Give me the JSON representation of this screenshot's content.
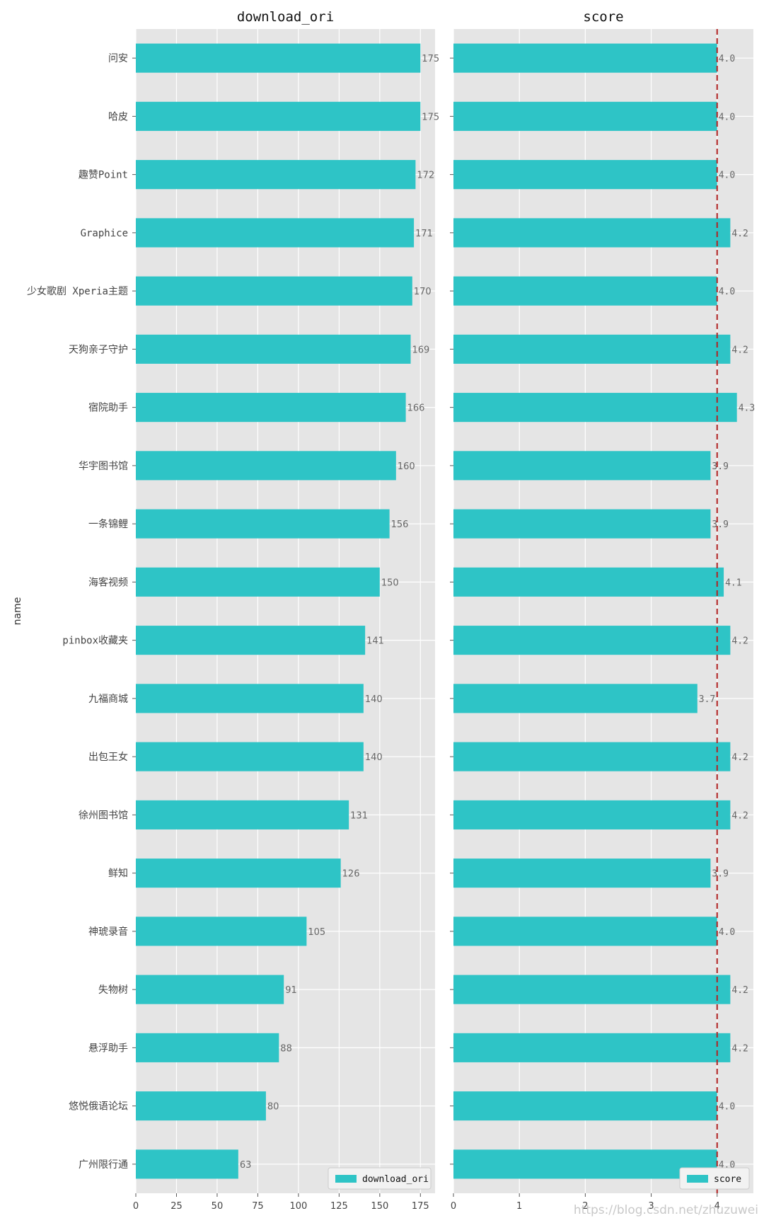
{
  "chart_data": [
    {
      "type": "bar",
      "orientation": "horizontal",
      "title": "download_ori",
      "ylabel": "name",
      "categories": [
        "问安",
        "哈皮",
        "趣赞Point",
        "Graphice",
        "少女歌剧 Xperia主题",
        "天狗亲子守护",
        "宿院助手",
        "华宇图书馆",
        "一条锦鲤",
        "海客视频",
        "pinbox收藏夹",
        "九福商城",
        "出包王女",
        "徐州图书馆",
        "鲜知",
        "神琥录音",
        "失物树",
        "悬浮助手",
        "悠悦俄语论坛",
        "广州限行通"
      ],
      "values": [
        175,
        175,
        172,
        171,
        170,
        169,
        166,
        160,
        156,
        150,
        141,
        140,
        140,
        131,
        126,
        105,
        91,
        88,
        80,
        63
      ],
      "data_labels": [
        "175",
        "175",
        "172",
        "171",
        "170",
        "169",
        "166",
        "160",
        "156",
        "150",
        "141",
        "140",
        "140",
        "131",
        "126",
        "105",
        "91",
        "88",
        "80",
        "63"
      ],
      "xlim": [
        0,
        184
      ],
      "xticks": [
        0,
        25,
        50,
        75,
        100,
        125,
        150,
        175
      ],
      "xtick_labels": [
        "0",
        "25",
        "50",
        "75",
        "100",
        "125",
        "150",
        "175"
      ],
      "legend": [
        "download_ori"
      ],
      "legend_position": "lower-right",
      "grid": true,
      "bar_color": "#2ec4c6"
    },
    {
      "type": "bar",
      "orientation": "horizontal",
      "title": "score",
      "values": [
        4.0,
        4.0,
        4.0,
        4.2,
        4.0,
        4.2,
        4.3,
        3.9,
        3.9,
        4.1,
        4.2,
        3.7,
        4.2,
        4.2,
        3.9,
        4.0,
        4.2,
        4.2,
        4.0,
        4.0
      ],
      "data_labels": [
        "4.0",
        "4.0",
        "4.0",
        "4.2",
        "4.0",
        "4.2",
        "4.3",
        "3.9",
        "3.9",
        "4.1",
        "4.2",
        "3.7",
        "4.2",
        "4.2",
        "3.9",
        "4.0",
        "4.2",
        "4.2",
        "4.0",
        "4.0"
      ],
      "xlim": [
        0,
        4.55
      ],
      "xticks": [
        0,
        1,
        2,
        3,
        4
      ],
      "xtick_labels": [
        "0",
        "1",
        "2",
        "3",
        "4"
      ],
      "reference_line": {
        "x": 4.0,
        "color": "#b22222",
        "style": "dashed"
      },
      "legend": [
        "score"
      ],
      "legend_position": "lower-right",
      "grid": true,
      "bar_color": "#2ec4c6"
    }
  ],
  "watermark": "https://blog.csdn.net/zhuzuwei"
}
